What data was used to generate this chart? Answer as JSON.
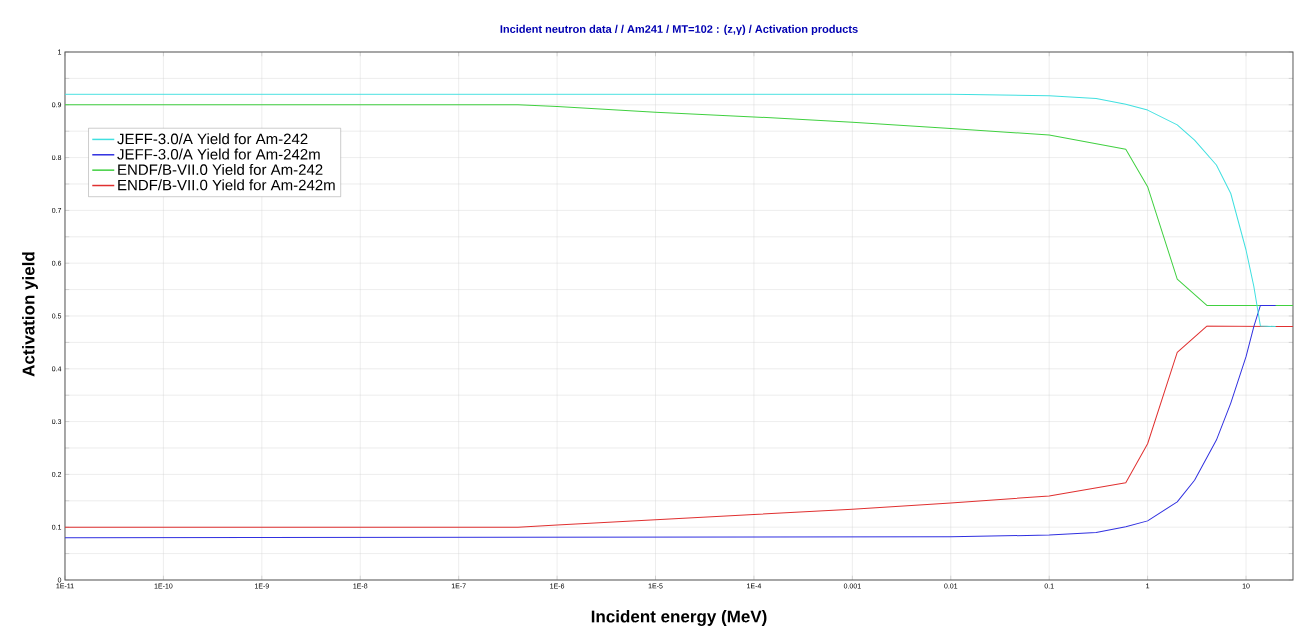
{
  "chart_data": {
    "type": "line",
    "title": "Incident neutron data / / Am241 / MT=102 : (z,γ) / Activation products",
    "xlabel": "Incident energy (MeV)",
    "ylabel": "Activation yield",
    "log": "x",
    "grid": true,
    "legend": "top left",
    "marker": "none",
    "line_style": "solid",
    "xlim": [
      1e-11,
      30
    ],
    "ylim": [
      0,
      1
    ],
    "xticks": [
      {
        "value": 1e-11,
        "label": "1E-11"
      },
      {
        "value": 1e-10,
        "label": "1E-10"
      },
      {
        "value": 1e-09,
        "label": "1E-9"
      },
      {
        "value": 1e-08,
        "label": "1E-8"
      },
      {
        "value": 1e-07,
        "label": "1E-7"
      },
      {
        "value": 1e-06,
        "label": "1E-6"
      },
      {
        "value": 1e-05,
        "label": "1E-5"
      },
      {
        "value": 0.0001,
        "label": "1E-4"
      },
      0.001,
      0.01,
      0.1,
      1,
      10
    ],
    "yticks": [
      0,
      {
        "value": 0.05,
        "label": null
      },
      0.1,
      {
        "value": 0.15,
        "label": null
      },
      0.2,
      {
        "value": 0.25,
        "label": null
      },
      0.3,
      {
        "value": 0.35,
        "label": null
      },
      0.4,
      {
        "value": 0.45,
        "label": null
      },
      0.5,
      {
        "value": 0.55,
        "label": null
      },
      0.6,
      {
        "value": 0.65,
        "label": null
      },
      0.7,
      {
        "value": 0.75,
        "label": null
      },
      0.8,
      {
        "value": 0.85,
        "label": null
      },
      0.9,
      {
        "value": 0.95,
        "label": null
      },
      1
    ],
    "series": [
      {
        "name": "JEFF-3.0/A Yield for Am-242",
        "color": "#40e0e0",
        "x": [
          1e-11,
          0.01,
          0.1,
          0.3,
          0.6,
          1,
          2,
          3,
          5,
          7,
          10,
          12,
          14,
          20
        ],
        "values": [
          0.92,
          0.92,
          0.917,
          0.912,
          0.901,
          0.89,
          0.862,
          0.833,
          0.786,
          0.732,
          0.625,
          0.556,
          0.481,
          0.48
        ]
      },
      {
        "name": "JEFF-3.0/A Yield for Am-242m",
        "color": "#3030e0",
        "x": [
          1e-11,
          0.01,
          0.1,
          0.3,
          0.6,
          1,
          2,
          3,
          5,
          7,
          10,
          12,
          14,
          20
        ],
        "values": [
          0.08,
          0.082,
          0.085,
          0.09,
          0.101,
          0.112,
          0.148,
          0.189,
          0.265,
          0.335,
          0.423,
          0.48,
          0.52,
          0.52
        ]
      },
      {
        "name": "ENDF/B-VII.0 Yield for Am-242",
        "color": "#40d040",
        "x": [
          1e-11,
          4e-07,
          1e-06,
          1e-05,
          0.0001,
          0.001,
          0.01,
          0.1,
          0.6,
          1,
          2,
          4,
          30
        ],
        "values": [
          0.9,
          0.9,
          0.897,
          0.886,
          0.877,
          0.867,
          0.855,
          0.843,
          0.816,
          0.745,
          0.57,
          0.52,
          0.52
        ]
      },
      {
        "name": "ENDF/B-VII.0 Yield for Am-242m",
        "color": "#e03030",
        "x": [
          1e-11,
          4e-07,
          1e-06,
          1e-05,
          0.0001,
          0.001,
          0.01,
          0.1,
          0.6,
          1,
          2,
          4,
          30
        ],
        "values": [
          0.1,
          0.1,
          0.104,
          0.114,
          0.124,
          0.134,
          0.146,
          0.159,
          0.184,
          0.258,
          0.431,
          0.481,
          0.48
        ]
      }
    ]
  }
}
